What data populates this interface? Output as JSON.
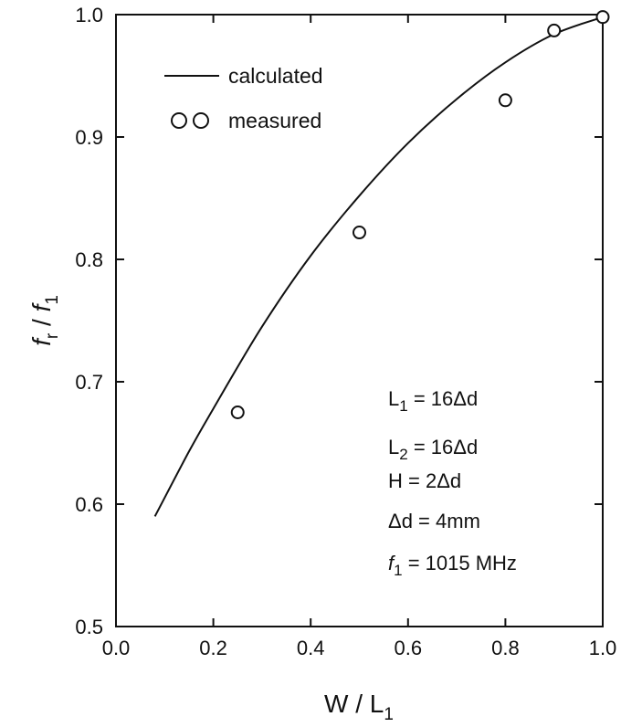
{
  "chart_data": {
    "type": "line",
    "title": "",
    "xlabel_main": "W / L",
    "xlabel_sub": "1",
    "ylabel_num_main": "f",
    "ylabel_num_sub": "r",
    "ylabel_sep": " / ",
    "ylabel_den_main": "f",
    "ylabel_den_sub": "1",
    "xlim": [
      0.0,
      1.0
    ],
    "ylim": [
      0.5,
      1.0
    ],
    "x_ticks": [
      "0.0",
      "0.2",
      "0.4",
      "0.6",
      "0.8",
      "1.0"
    ],
    "y_ticks": [
      "0.5",
      "0.6",
      "0.7",
      "0.8",
      "0.9",
      "1.0"
    ],
    "grid": false,
    "legend_placement": "top-left",
    "legend": {
      "calculated": "calculated",
      "measured": "measured"
    },
    "series": [
      {
        "name": "calculated",
        "style": "line",
        "x": [
          0.08,
          0.15,
          0.2,
          0.3,
          0.4,
          0.5,
          0.6,
          0.7,
          0.8,
          0.9,
          1.0
        ],
        "y": [
          0.59,
          0.643,
          0.678,
          0.745,
          0.803,
          0.852,
          0.895,
          0.931,
          0.961,
          0.984,
          0.998
        ]
      },
      {
        "name": "measured",
        "style": "marker",
        "x": [
          0.25,
          0.5,
          0.8,
          0.9,
          1.0
        ],
        "y": [
          0.675,
          0.822,
          0.93,
          0.987,
          0.998
        ]
      }
    ],
    "annotations": [
      {
        "main": "L",
        "sub": "1",
        "rest": " = 16Δd",
        "italic": false
      },
      {
        "main": "L",
        "sub": "2",
        "rest": " = 16Δd",
        "italic": false
      },
      {
        "main": "H = 2Δd",
        "sub": "",
        "rest": "",
        "italic": false
      },
      {
        "main": "Δd = 4mm",
        "sub": "",
        "rest": "",
        "italic": false
      },
      {
        "main": "f",
        "sub": "1",
        "rest": " = 1015 MHz",
        "italic": true
      }
    ]
  }
}
